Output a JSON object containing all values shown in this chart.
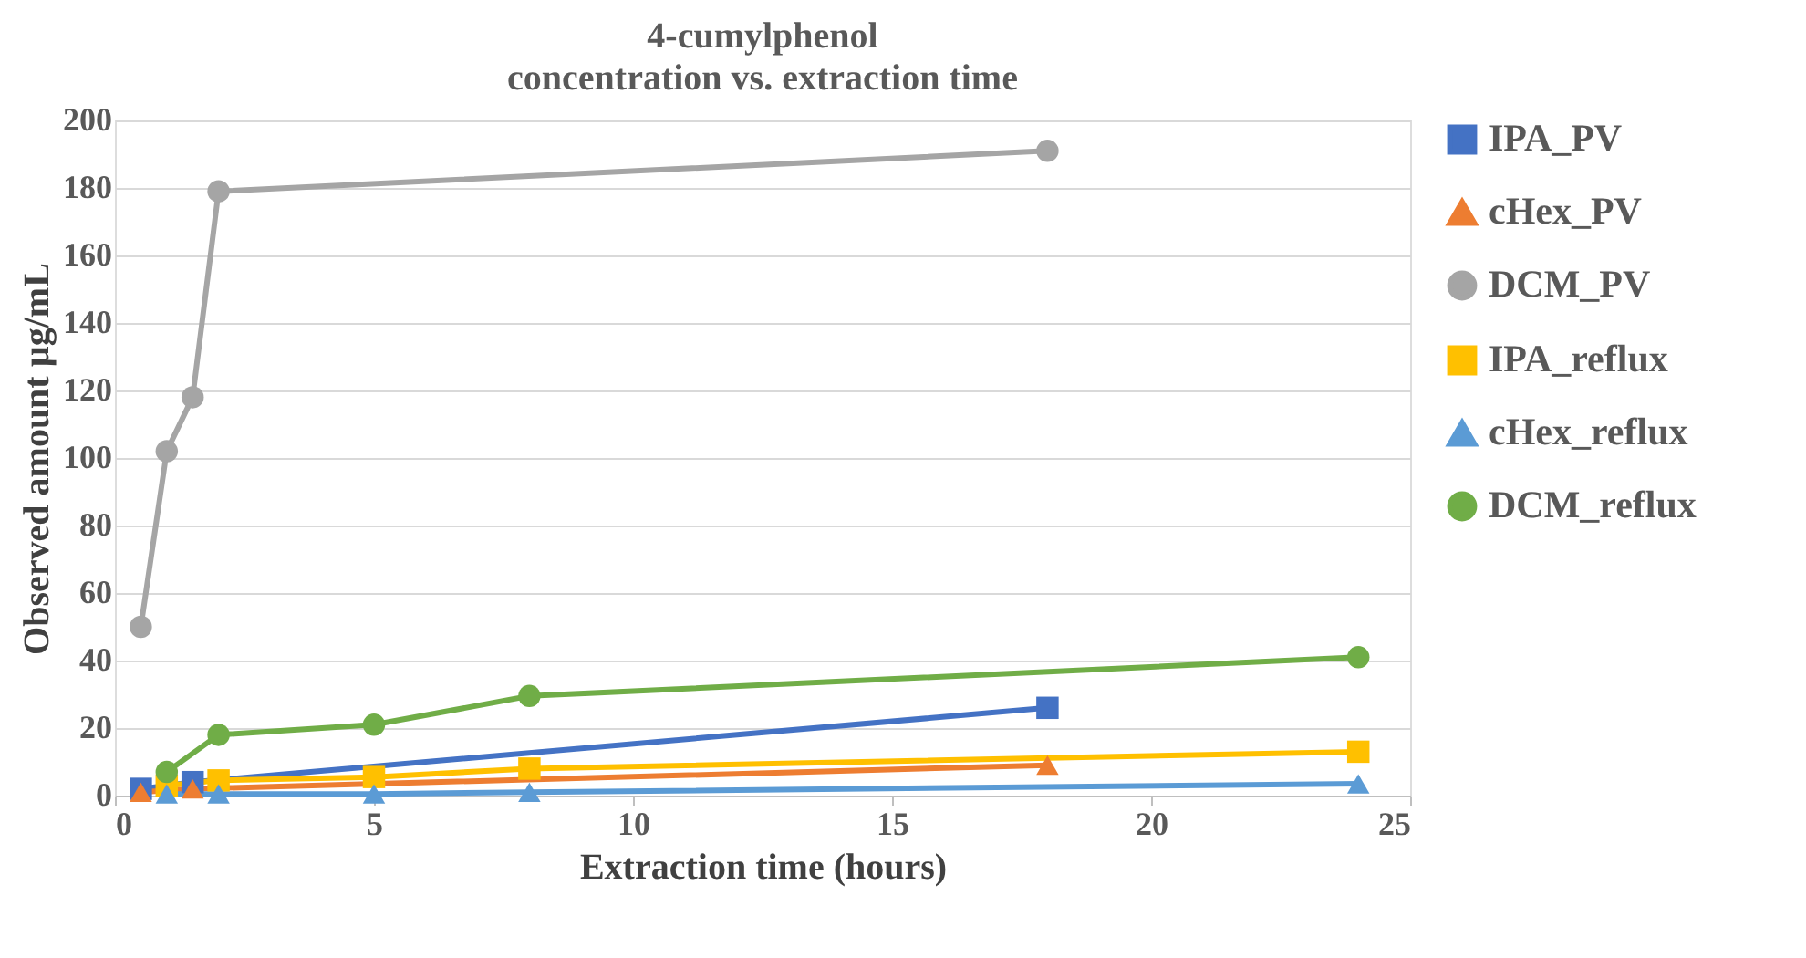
{
  "chart_data": {
    "type": "line",
    "title": "4-cumylphenol",
    "subtitle": "concentration vs. extraction time",
    "xlabel": "Extraction time (hours)",
    "ylabel": "Observed amount µg/mL",
    "xlim": [
      0,
      25
    ],
    "xticks": [
      0,
      5,
      10,
      15,
      20,
      25
    ],
    "ylim": [
      0,
      200
    ],
    "yticks": [
      0,
      20,
      40,
      60,
      80,
      100,
      120,
      140,
      160,
      180,
      200
    ],
    "grid": "y",
    "legend": "right",
    "line_style": "solid",
    "series": [
      {
        "name": "IPA_PV",
        "color": "#4472c4",
        "marker": "square",
        "x": [
          0.5,
          1.5,
          18
        ],
        "values": [
          2,
          4,
          26
        ]
      },
      {
        "name": "cHex_PV",
        "color": "#ed7d31",
        "marker": "triangle",
        "x": [
          0.5,
          1.5,
          18
        ],
        "values": [
          1,
          2,
          9
        ]
      },
      {
        "name": "DCM_PV",
        "color": "#a5a5a5",
        "marker": "circle",
        "x": [
          0.5,
          1,
          1.5,
          2,
          18
        ],
        "values": [
          50,
          102,
          118,
          179,
          191
        ]
      },
      {
        "name": "IPA_reflux",
        "color": "#ffc000",
        "marker": "square",
        "x": [
          1,
          2,
          5,
          8,
          24
        ],
        "values": [
          3,
          4.5,
          5.5,
          8,
          13
        ]
      },
      {
        "name": "cHex_reflux",
        "color": "#5b9bd5",
        "marker": "triangle",
        "x": [
          1,
          2,
          5,
          8,
          24
        ],
        "values": [
          0.5,
          0.5,
          0.5,
          1,
          3.5
        ]
      },
      {
        "name": "DCM_reflux",
        "color": "#70ad47",
        "marker": "circle",
        "x": [
          1,
          2,
          5,
          8,
          24
        ],
        "values": [
          7,
          18,
          21,
          29.5,
          41
        ]
      }
    ]
  }
}
